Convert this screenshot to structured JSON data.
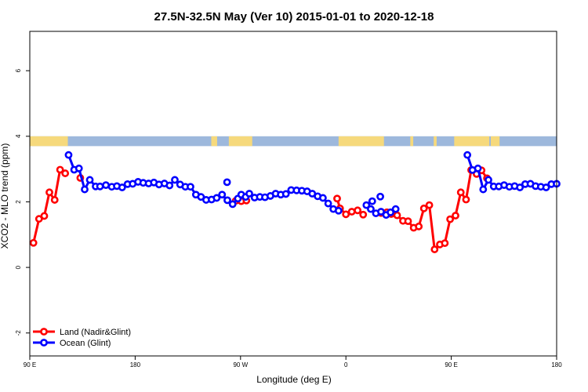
{
  "chart_data": {
    "type": "line",
    "title": "27.5N-32.5N May (Ver 10)   2015-01-01 to 2020-12-18",
    "xlabel": "Longitude (deg E)",
    "ylabel": "XCO2 - MLO trend (ppm)",
    "xlim": [
      90,
      450
    ],
    "ylim": [
      -2.7,
      7.2
    ],
    "x_ticks": [
      {
        "value": 90,
        "label": "90 E"
      },
      {
        "value": 162,
        "label": "180"
      },
      {
        "value": 234,
        "label": "90 W"
      },
      {
        "value": 306,
        "label": "0"
      },
      {
        "value": 378,
        "label": "90 E"
      },
      {
        "value": 450,
        "label": "180"
      }
    ],
    "y_ticks": [
      {
        "value": -2,
        "label": "-2"
      },
      {
        "value": 0,
        "label": "0"
      },
      {
        "value": 2,
        "label": "2"
      },
      {
        "value": 4,
        "label": "4"
      },
      {
        "value": 6,
        "label": "6"
      }
    ],
    "land_ocean_strip": {
      "y_range": [
        3.7,
        4.0
      ],
      "ocean_color": "#9db8dc",
      "land_color": "#f6d97c",
      "land_segments": [
        [
          90,
          116
        ],
        [
          214,
          218
        ],
        [
          226,
          242
        ],
        [
          301,
          332
        ],
        [
          350,
          352
        ],
        [
          366,
          368
        ],
        [
          380,
          404
        ],
        [
          405,
          411
        ]
      ]
    },
    "legend_position": "bottom-left",
    "series": [
      {
        "name": "Land (Nadir&Glint)",
        "color": "#ff0000",
        "segments": [
          {
            "x": [
              92.5,
              96.3,
              99.9,
              103.4,
              107.0,
              110.7,
              114.2
            ],
            "y": [
              0.75,
              1.48,
              1.57,
              2.29,
              2.06,
              2.98,
              2.87
            ]
          },
          {
            "x": [
              124.5
            ],
            "y": [
              2.73
            ]
          },
          {
            "x": [
              230.7,
              234.5,
              238.0
            ],
            "y": [
              2.03,
              2.02,
              2.04
            ]
          },
          {
            "x": [
              300.0,
              302.0,
              306.0,
              310.0,
              314.0,
              317.8
            ],
            "y": [
              2.1,
              1.8,
              1.62,
              1.7,
              1.74,
              1.61
            ]
          },
          {
            "x": [
              330.0,
              334.0,
              337.0,
              341.0,
              345.0,
              348.5,
              352.3,
              355.8,
              359.3,
              363.0,
              366.6,
              370.2,
              373.6,
              377.2,
              380.9,
              384.5,
              388.1,
              391.6,
              395.3,
              398.7,
              402.4
            ],
            "y": [
              1.66,
              1.68,
              1.63,
              1.59,
              1.42,
              1.41,
              1.21,
              1.25,
              1.8,
              1.9,
              0.55,
              0.7,
              0.74,
              1.47,
              1.58,
              2.29,
              2.07,
              2.97,
              2.85,
              2.96,
              2.72
            ]
          }
        ]
      },
      {
        "name": "Ocean (Glint)",
        "color": "#0000ff",
        "segments": [
          {
            "x": [
              116.5,
              120.3,
              123.6,
              127.5,
              131.0,
              135.0,
              138.0,
              142.0,
              146.0,
              149.5,
              153.1,
              156.8,
              160.3,
              164.0,
              167.5,
              171.2,
              174.8,
              178.3,
              182.0,
              185.5,
              189.1,
              192.7,
              196.3,
              199.8,
              203.5,
              207.0,
              210.5,
              214.2,
              217.7,
              221.4,
              225.0,
              228.6,
              232.2
            ],
            "y": [
              3.43,
              2.98,
              3.02,
              2.38,
              2.67,
              2.47,
              2.47,
              2.51,
              2.46,
              2.48,
              2.44,
              2.54,
              2.55,
              2.61,
              2.58,
              2.56,
              2.59,
              2.53,
              2.56,
              2.5,
              2.67,
              2.53,
              2.46,
              2.46,
              2.22,
              2.15,
              2.06,
              2.07,
              2.12,
              2.22,
              2.05,
              1.93,
              2.1
            ]
          },
          {
            "x": [
              234.5,
              237.5,
              240.0,
              243.6,
              247.2,
              250.7,
              254.4,
              258.0,
              261.5,
              265.0,
              268.6,
              272.3,
              275.9,
              279.5,
              283.0,
              286.7,
              290.3,
              293.9,
              297.4,
              301.0
            ],
            "y": [
              2.22,
              2.15,
              2.25,
              2.13,
              2.15,
              2.14,
              2.18,
              2.25,
              2.22,
              2.24,
              2.36,
              2.35,
              2.34,
              2.32,
              2.25,
              2.17,
              2.12,
              1.95,
              1.78,
              1.73
            ]
          },
          {
            "x": [
              320.0,
              323.0,
              326.5,
              330.0,
              333.5,
              336.5,
              340.0
            ],
            "y": [
              1.9,
              1.78,
              1.65,
              1.7,
              1.6,
              1.68,
              1.78
            ]
          },
          {
            "x": [
              324.0
            ],
            "y": [
              2.02
            ]
          },
          {
            "x": [
              329.5
            ],
            "y": [
              2.16
            ]
          },
          {
            "x": [
              224.8
            ],
            "y": [
              2.6
            ]
          },
          {
            "x": [
              389.0,
              392.5,
              396.2,
              399.8,
              403.4,
              407.0,
              410.5,
              414.1,
              417.7,
              421.3,
              424.9,
              428.5,
              432.1,
              435.6,
              439.2,
              442.8,
              446.4,
              450.0
            ],
            "y": [
              3.43,
              2.97,
              3.02,
              2.38,
              2.67,
              2.47,
              2.47,
              2.51,
              2.46,
              2.48,
              2.44,
              2.54,
              2.55,
              2.48,
              2.46,
              2.44,
              2.54,
              2.55
            ]
          }
        ]
      }
    ]
  }
}
